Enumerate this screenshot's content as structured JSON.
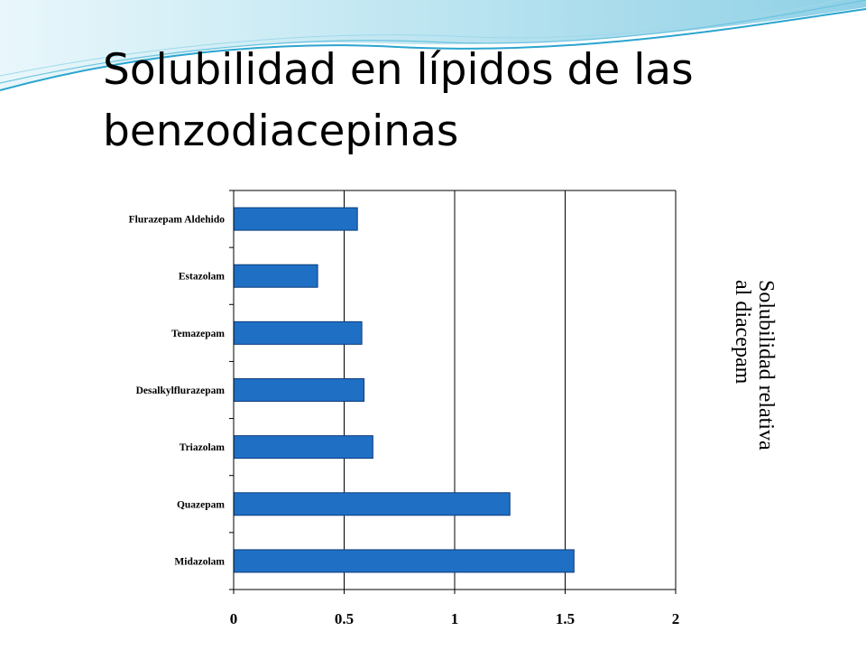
{
  "slide": {
    "title": "Solubilidad en lípidos de las benzodiacepinas"
  },
  "colors": {
    "bar": "#1f6fc5",
    "bar_stroke": "#0a3b7a",
    "wave_light": "#bfe6f2",
    "wave_dark": "#2aa4cf"
  },
  "chart_data": {
    "type": "bar",
    "orientation": "horizontal",
    "categories": [
      "Flurazepam Aldehido",
      "Estazolam",
      "Temazepam",
      "Desalkylflurazepam",
      "Triazolam",
      "Quazepam",
      "Midazolam"
    ],
    "values": [
      0.56,
      0.38,
      0.58,
      0.59,
      0.63,
      1.25,
      1.54
    ],
    "x_ticks": [
      "0",
      "0.5",
      "1",
      "1.5",
      "2"
    ],
    "xlim": [
      0,
      2
    ],
    "grid": "vertical",
    "ylabel_lines": [
      "Solubilidad relativa",
      "al diacepam"
    ],
    "legend": "none"
  }
}
